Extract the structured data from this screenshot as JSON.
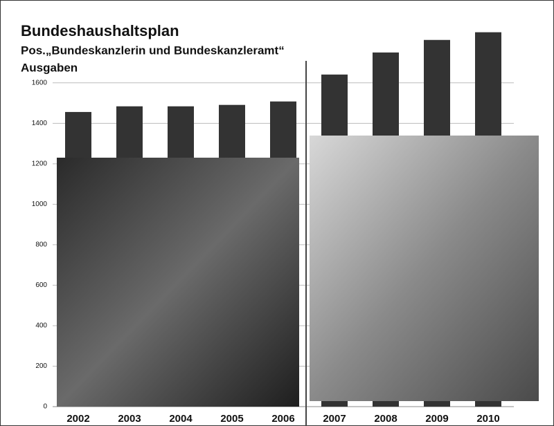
{
  "chart_data": {
    "type": "bar",
    "title": "Bundeshaushaltsplan",
    "subtitle": "Pos.„Bundeskanzlerin und Bundeskanzleramt“",
    "y_label": "Ausgaben",
    "categories": [
      "2002",
      "2003",
      "2004",
      "2005",
      "2006",
      "2007",
      "2008",
      "2009",
      "2010"
    ],
    "values": [
      1456,
      1484,
      1484,
      1491,
      1508,
      1641,
      1750,
      1812,
      1850
    ],
    "color": "#333333",
    "ylim": [
      0,
      1900
    ],
    "yticks": [
      0,
      200,
      400,
      600,
      800,
      1000,
      1200,
      1400,
      1600
    ],
    "grid": true
  }
}
